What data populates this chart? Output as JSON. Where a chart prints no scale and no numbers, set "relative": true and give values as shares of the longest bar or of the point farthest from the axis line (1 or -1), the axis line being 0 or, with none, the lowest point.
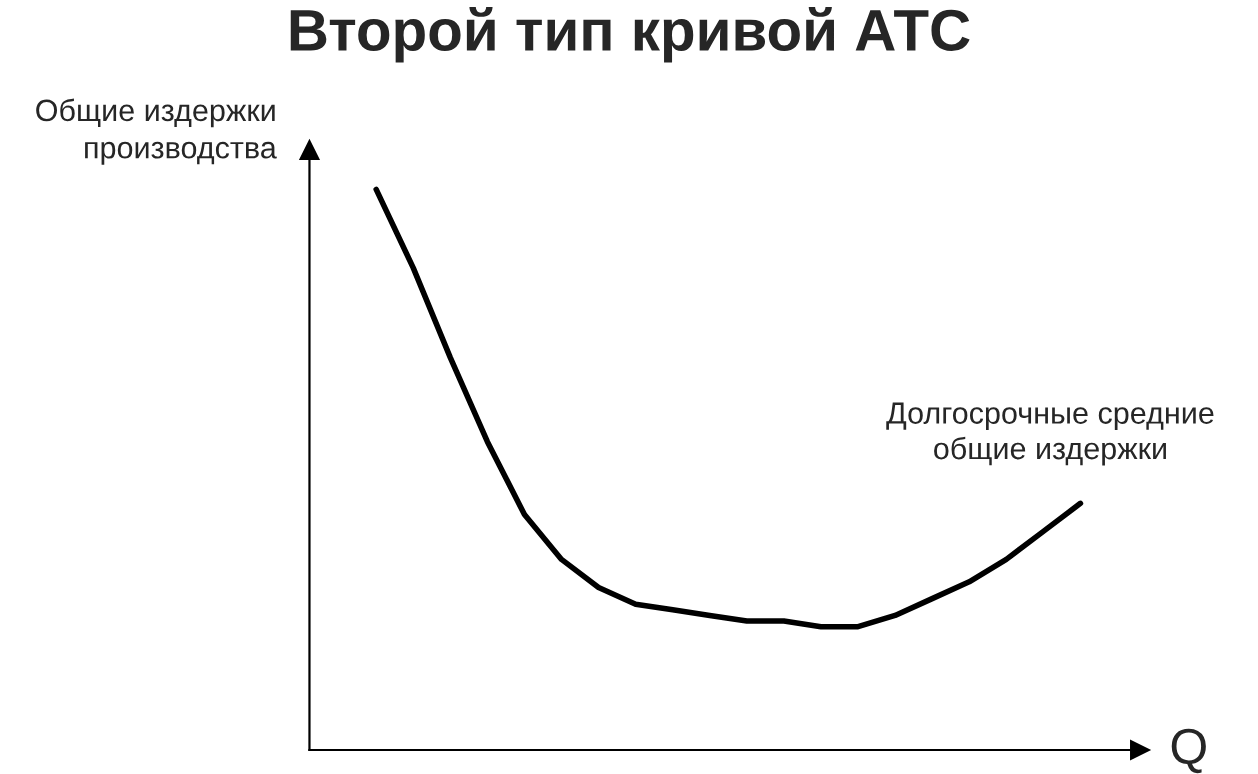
{
  "chart_data": {
    "type": "line",
    "title": "Второй тип кривой АТС",
    "xlabel": "Q",
    "ylabel": "Общие издержки\nпроизводства",
    "relative": true,
    "grid": false,
    "legend": false,
    "marker": "none",
    "line_style": "solid",
    "categories": [
      null,
      null,
      null,
      null,
      null,
      null,
      null,
      null,
      null,
      null,
      null,
      null,
      null,
      null,
      null,
      null,
      null,
      null,
      null,
      null
    ],
    "series": [
      {
        "color": "#000000",
        "values": [
          1.0,
          0.86,
          0.7,
          0.55,
          0.42,
          0.34,
          0.29,
          0.26,
          0.25,
          0.24,
          0.23,
          0.23,
          0.22,
          0.22,
          0.24,
          0.27,
          0.3,
          0.34,
          0.39,
          0.44
        ]
      }
    ],
    "annotations": [
      "Долгосрочные средние\nобщие издержки"
    ]
  }
}
